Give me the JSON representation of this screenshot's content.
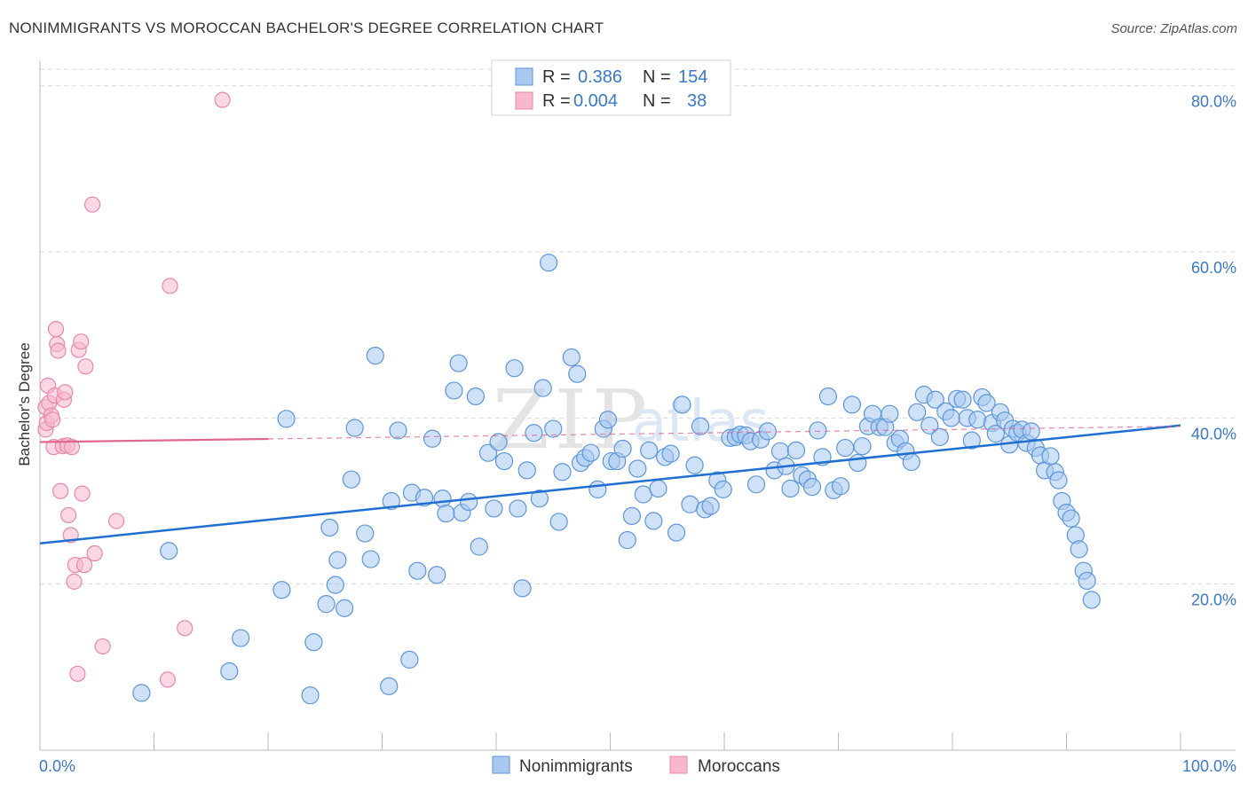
{
  "title": "NONIMMIGRANTS VS MOROCCAN BACHELOR'S DEGREE CORRELATION CHART",
  "source": "Source: ZipAtlas.com",
  "watermark": {
    "zip": "ZIP",
    "atlas": "atlas"
  },
  "colors": {
    "blue_fill": "#a8c8f0",
    "blue_stroke": "#5b96dc",
    "blue_line": "#1f6fd0",
    "pink_fill": "#f8b8cc",
    "pink_stroke": "#e888a8",
    "pink_line": "#e06890",
    "tick_text": "#3a78c8",
    "grid": "#d9d9d9"
  },
  "legend": {
    "rows": [
      {
        "series": "Nonimmigrants",
        "r_label": "R =",
        "r_value": "0.386",
        "n_label": "N =",
        "n_value": "154"
      },
      {
        "series": "Moroccans",
        "r_label": "R =",
        "r_value": "0.004",
        "n_label": "N =",
        "n_value": "38"
      }
    ]
  },
  "bottom_legend": [
    "Nonimmigrants",
    "Moroccans"
  ],
  "chart_data": {
    "type": "scatter",
    "title": "NONIMMIGRANTS VS MOROCCAN BACHELOR'S DEGREE CORRELATION CHART",
    "xlabel": "",
    "ylabel": "Bachelor's Degree",
    "xlim": [
      0,
      100
    ],
    "ylim": [
      0,
      82
    ],
    "x_tick_labels": {
      "left": "0.0%",
      "right": "100.0%"
    },
    "y_ticks": [
      {
        "value": 20,
        "label": "20.0%"
      },
      {
        "value": 40,
        "label": "40.0%"
      },
      {
        "value": 60,
        "label": "60.0%"
      },
      {
        "value": 80,
        "label": "80.0%"
      }
    ],
    "series": [
      {
        "name": "Nonimmigrants",
        "color": "blue",
        "trend": {
          "x": [
            0,
            100
          ],
          "y": [
            24.9,
            39.1
          ],
          "dashed_from": null
        },
        "points": [
          [
            8.9,
            6.9
          ],
          [
            11.3,
            24.0
          ],
          [
            16.6,
            9.5
          ],
          [
            17.6,
            13.5
          ],
          [
            21.2,
            19.3
          ],
          [
            21.6,
            39.9
          ],
          [
            23.7,
            6.6
          ],
          [
            24.0,
            13.0
          ],
          [
            25.1,
            17.6
          ],
          [
            25.4,
            26.8
          ],
          [
            25.9,
            19.9
          ],
          [
            26.1,
            22.9
          ],
          [
            26.7,
            17.1
          ],
          [
            27.3,
            32.6
          ],
          [
            27.6,
            38.8
          ],
          [
            28.5,
            26.1
          ],
          [
            29.0,
            23.0
          ],
          [
            29.4,
            47.5
          ],
          [
            30.6,
            7.7
          ],
          [
            30.8,
            30.0
          ],
          [
            31.4,
            38.5
          ],
          [
            32.4,
            10.9
          ],
          [
            32.6,
            31.0
          ],
          [
            33.1,
            21.6
          ],
          [
            33.7,
            30.4
          ],
          [
            34.4,
            37.5
          ],
          [
            34.8,
            21.1
          ],
          [
            35.3,
            30.3
          ],
          [
            35.6,
            28.5
          ],
          [
            36.3,
            43.3
          ],
          [
            36.7,
            46.6
          ],
          [
            37.0,
            28.6
          ],
          [
            37.6,
            29.9
          ],
          [
            38.2,
            42.6
          ],
          [
            38.5,
            24.5
          ],
          [
            39.3,
            35.8
          ],
          [
            39.8,
            29.1
          ],
          [
            40.2,
            37.1
          ],
          [
            40.7,
            34.8
          ],
          [
            41.6,
            46.0
          ],
          [
            41.9,
            29.1
          ],
          [
            42.3,
            19.5
          ],
          [
            42.7,
            33.7
          ],
          [
            43.3,
            38.2
          ],
          [
            43.8,
            30.3
          ],
          [
            44.1,
            43.6
          ],
          [
            44.6,
            58.7
          ],
          [
            45.0,
            38.7
          ],
          [
            45.5,
            27.5
          ],
          [
            45.8,
            33.5
          ],
          [
            46.6,
            47.3
          ],
          [
            47.1,
            45.3
          ],
          [
            47.4,
            34.6
          ],
          [
            47.8,
            35.2
          ],
          [
            48.3,
            35.8
          ],
          [
            48.9,
            31.4
          ],
          [
            49.4,
            38.7
          ],
          [
            49.8,
            39.8
          ],
          [
            50.1,
            34.8
          ],
          [
            50.6,
            34.8
          ],
          [
            51.1,
            36.3
          ],
          [
            51.5,
            25.3
          ],
          [
            51.9,
            28.2
          ],
          [
            52.4,
            33.9
          ],
          [
            52.9,
            30.8
          ],
          [
            53.4,
            36.1
          ],
          [
            53.8,
            27.6
          ],
          [
            54.2,
            31.5
          ],
          [
            54.8,
            35.3
          ],
          [
            55.3,
            35.7
          ],
          [
            55.8,
            26.2
          ],
          [
            56.3,
            41.6
          ],
          [
            57.0,
            29.6
          ],
          [
            57.4,
            34.3
          ],
          [
            57.9,
            39.0
          ],
          [
            58.3,
            29.0
          ],
          [
            58.8,
            29.4
          ],
          [
            59.4,
            32.5
          ],
          [
            59.9,
            31.4
          ],
          [
            60.5,
            37.6
          ],
          [
            61.0,
            37.7
          ],
          [
            61.4,
            38.0
          ],
          [
            61.9,
            37.9
          ],
          [
            62.3,
            37.2
          ],
          [
            62.8,
            32.0
          ],
          [
            63.2,
            37.4
          ],
          [
            63.8,
            38.4
          ],
          [
            64.4,
            33.7
          ],
          [
            64.9,
            36.0
          ],
          [
            65.4,
            34.2
          ],
          [
            65.8,
            31.5
          ],
          [
            66.3,
            36.1
          ],
          [
            66.8,
            33.1
          ],
          [
            67.3,
            32.6
          ],
          [
            67.7,
            31.7
          ],
          [
            68.2,
            38.5
          ],
          [
            68.6,
            35.3
          ],
          [
            69.1,
            42.6
          ],
          [
            69.6,
            31.3
          ],
          [
            70.2,
            31.8
          ],
          [
            70.6,
            36.4
          ],
          [
            71.2,
            41.6
          ],
          [
            71.7,
            34.6
          ],
          [
            72.1,
            36.6
          ],
          [
            72.6,
            39.0
          ],
          [
            73.0,
            40.5
          ],
          [
            73.6,
            38.9
          ],
          [
            74.1,
            38.9
          ],
          [
            74.5,
            40.5
          ],
          [
            75.0,
            37.0
          ],
          [
            75.4,
            37.5
          ],
          [
            75.9,
            36.0
          ],
          [
            76.4,
            34.7
          ],
          [
            76.9,
            40.7
          ],
          [
            77.5,
            42.8
          ],
          [
            78.0,
            39.1
          ],
          [
            78.5,
            42.2
          ],
          [
            78.9,
            37.7
          ],
          [
            79.4,
            40.8
          ],
          [
            79.9,
            40.0
          ],
          [
            80.4,
            42.3
          ],
          [
            80.9,
            42.2
          ],
          [
            81.3,
            40.0
          ],
          [
            81.7,
            37.3
          ],
          [
            82.2,
            39.8
          ],
          [
            82.6,
            42.5
          ],
          [
            83.0,
            41.8
          ],
          [
            83.5,
            39.4
          ],
          [
            83.8,
            38.1
          ],
          [
            84.2,
            40.7
          ],
          [
            84.6,
            39.7
          ],
          [
            85.0,
            36.8
          ],
          [
            85.3,
            38.7
          ],
          [
            85.7,
            38.2
          ],
          [
            86.1,
            38.6
          ],
          [
            86.5,
            37.0
          ],
          [
            86.9,
            38.4
          ],
          [
            87.3,
            36.4
          ],
          [
            87.7,
            35.5
          ],
          [
            88.1,
            33.7
          ],
          [
            88.6,
            35.4
          ],
          [
            89.0,
            33.5
          ],
          [
            89.3,
            32.5
          ],
          [
            89.6,
            30.0
          ],
          [
            90.0,
            28.6
          ],
          [
            90.4,
            27.9
          ],
          [
            90.8,
            25.9
          ],
          [
            91.1,
            24.2
          ],
          [
            91.5,
            21.6
          ],
          [
            91.8,
            20.4
          ],
          [
            92.2,
            18.1
          ]
        ]
      },
      {
        "name": "Moroccans",
        "color": "pink",
        "trend": {
          "x": [
            0,
            100
          ],
          "y": [
            37.1,
            39.0
          ],
          "dashed_from": 20
        },
        "points": [
          [
            0.5,
            41.3
          ],
          [
            0.5,
            38.6
          ],
          [
            0.6,
            39.4
          ],
          [
            0.7,
            43.9
          ],
          [
            0.8,
            41.8
          ],
          [
            1.0,
            40.3
          ],
          [
            1.1,
            39.8
          ],
          [
            1.2,
            36.5
          ],
          [
            1.3,
            42.7
          ],
          [
            1.4,
            50.7
          ],
          [
            1.5,
            48.9
          ],
          [
            1.6,
            48.1
          ],
          [
            1.8,
            31.2
          ],
          [
            2.0,
            36.6
          ],
          [
            2.1,
            42.2
          ],
          [
            2.2,
            43.1
          ],
          [
            2.4,
            36.7
          ],
          [
            2.5,
            28.3
          ],
          [
            2.7,
            25.9
          ],
          [
            2.8,
            36.5
          ],
          [
            3.0,
            20.3
          ],
          [
            3.1,
            22.3
          ],
          [
            3.3,
            9.2
          ],
          [
            3.4,
            48.2
          ],
          [
            3.6,
            49.2
          ],
          [
            3.7,
            30.9
          ],
          [
            3.9,
            22.3
          ],
          [
            4.0,
            46.2
          ],
          [
            4.6,
            65.7
          ],
          [
            4.8,
            23.7
          ],
          [
            5.5,
            12.5
          ],
          [
            6.7,
            27.6
          ],
          [
            11.2,
            8.5
          ],
          [
            11.4,
            55.9
          ],
          [
            12.7,
            14.7
          ],
          [
            16.0,
            78.3
          ]
        ]
      }
    ]
  }
}
